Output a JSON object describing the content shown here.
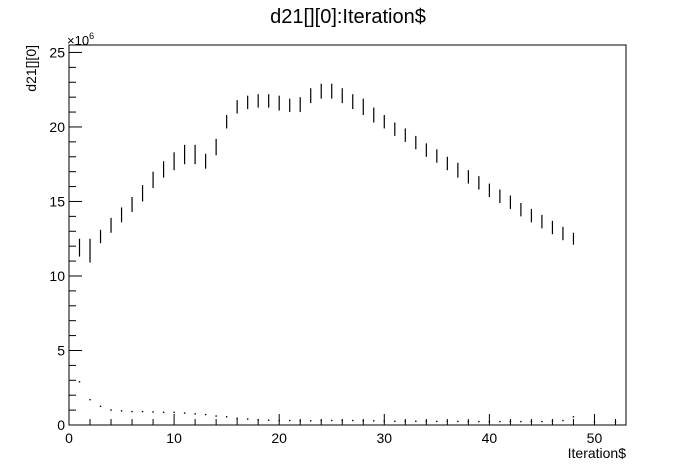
{
  "chart_data": {
    "type": "scatter",
    "title": "d21[][0]:Iteration$",
    "xlabel": "Iteration$",
    "ylabel": "d21[][0]",
    "exponent_label": "×10",
    "exponent_power": "6",
    "xlim": [
      0,
      53
    ],
    "ylim": [
      0,
      25.5
    ],
    "x_ticks": [
      0,
      10,
      20,
      30,
      40,
      50
    ],
    "y_ticks": [
      0,
      5,
      10,
      15,
      20,
      25
    ],
    "grid": false,
    "legend": "none",
    "series": [
      {
        "style": "vertical-dashes",
        "x": [
          1,
          2,
          3,
          4,
          5,
          6,
          7,
          8,
          9,
          10,
          11,
          12,
          13,
          14,
          15,
          16,
          17,
          18,
          19,
          20,
          21,
          22,
          23,
          24,
          25,
          26,
          27,
          28,
          29,
          30,
          31,
          32,
          33,
          34,
          35,
          36,
          37,
          38,
          39,
          40,
          41,
          42,
          43,
          44,
          45,
          46,
          47,
          48
        ],
        "y_low": [
          11.3,
          10.9,
          12.2,
          12.9,
          13.6,
          14.3,
          15.0,
          15.9,
          16.6,
          17.1,
          17.5,
          17.5,
          17.2,
          18.1,
          19.9,
          20.9,
          21.2,
          21.3,
          21.3,
          21.1,
          21.0,
          21.0,
          21.6,
          21.9,
          21.9,
          21.6,
          21.2,
          20.8,
          20.3,
          19.9,
          19.4,
          19.0,
          18.5,
          18.0,
          17.6,
          17.1,
          16.6,
          16.2,
          15.8,
          15.3,
          14.9,
          14.5,
          14.0,
          13.6,
          13.2,
          12.8,
          12.4,
          12.1
        ],
        "y_high": [
          12.5,
          12.5,
          13.1,
          13.9,
          14.6,
          15.3,
          16.1,
          17.0,
          17.7,
          18.3,
          18.8,
          18.8,
          18.2,
          19.2,
          20.8,
          21.8,
          22.1,
          22.2,
          22.2,
          22.1,
          21.9,
          22.0,
          22.6,
          22.9,
          22.9,
          22.6,
          22.2,
          21.9,
          21.3,
          20.8,
          20.3,
          19.9,
          19.4,
          18.9,
          18.5,
          18.0,
          17.6,
          17.1,
          16.7,
          16.2,
          15.8,
          15.4,
          14.9,
          14.5,
          14.1,
          13.7,
          13.3,
          12.9
        ]
      },
      {
        "style": "dots",
        "x": [
          1,
          2,
          3,
          4,
          5,
          6,
          7,
          8,
          9,
          10,
          11,
          12,
          13,
          14,
          15,
          16,
          17,
          18,
          19,
          20,
          21,
          22,
          23,
          24,
          25,
          26,
          27,
          28,
          29,
          30,
          31,
          32,
          33,
          34,
          35,
          36,
          37,
          38,
          39,
          40,
          41,
          42,
          43,
          44,
          45,
          46,
          47,
          48,
          50,
          52
        ],
        "y": [
          2.9,
          1.7,
          1.25,
          1.0,
          0.95,
          0.9,
          0.9,
          0.88,
          0.85,
          0.85,
          0.8,
          0.75,
          0.7,
          0.6,
          0.55,
          0.45,
          0.4,
          0.35,
          0.32,
          0.3,
          0.3,
          0.28,
          0.28,
          0.3,
          0.3,
          0.3,
          0.3,
          0.28,
          0.28,
          0.26,
          0.25,
          0.25,
          0.25,
          0.24,
          0.24,
          0.24,
          0.24,
          0.23,
          0.23,
          0.23,
          0.23,
          0.23,
          0.23,
          0.23,
          0.23,
          0.25,
          0.3,
          0.55,
          0.2,
          0.2
        ]
      }
    ]
  }
}
